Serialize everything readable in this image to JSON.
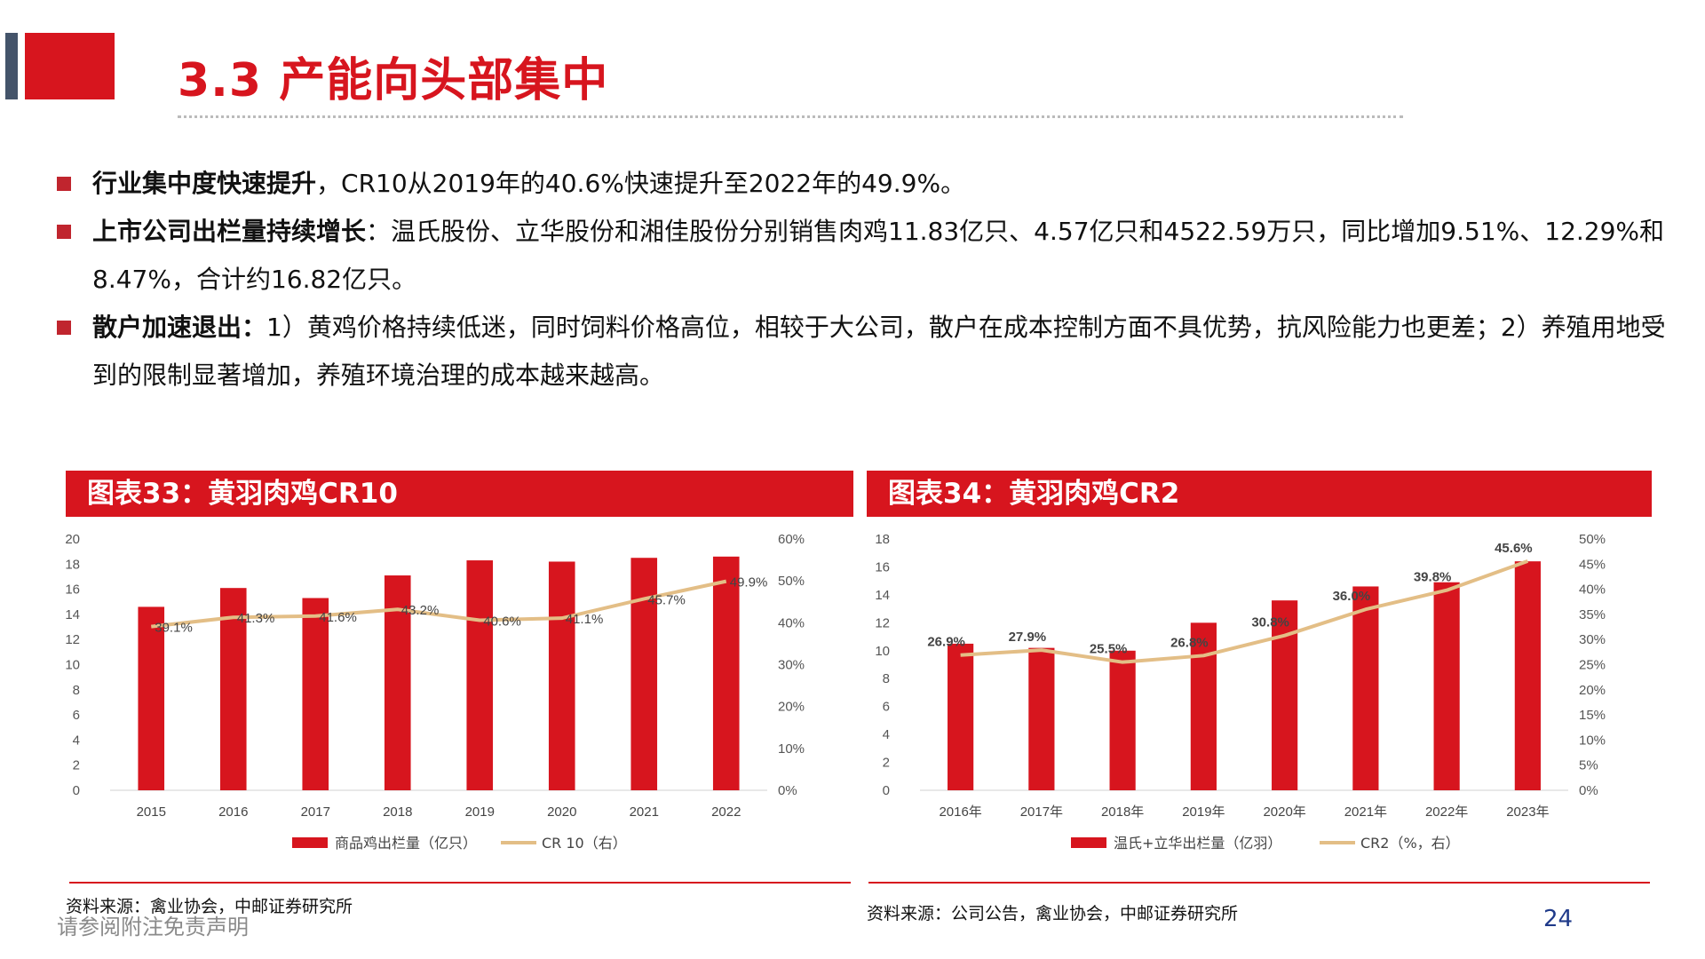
{
  "header": {
    "title": "3.3 产能向头部集中"
  },
  "bullets": [
    {
      "bold": "行业集中度快速提升",
      "text": "，CR10从2019年的40.6%快速提升至2022年的49.9%。"
    },
    {
      "bold": "上市公司出栏量持续增长",
      "text": "：温氏股份、立华股份和湘佳股份分别销售肉鸡11.83亿只、4.57亿只和4522.59万只，同比增加9.51%、12.29%和8.47%，合计约16.82亿只。"
    },
    {
      "bold": "散户加速退出：",
      "text": "1）黄鸡价格持续低迷，同时饲料价格高位，相较于大公司，散户在成本控制方面不具优势，抗风险能力也更差；2）养殖用地受到的限制显著增加，养殖环境治理的成本越来越高。"
    }
  ],
  "colors": {
    "accent": "#D7151E",
    "line": "#E3BE86",
    "slate": "#44546A"
  },
  "chart_data": [
    {
      "type": "bar",
      "title": "图表33：黄羽肉鸡CR10",
      "categories": [
        "2015",
        "2016",
        "2017",
        "2018",
        "2019",
        "2020",
        "2021",
        "2022"
      ],
      "series": [
        {
          "name": "商品鸡出栏量（亿只）",
          "type": "bar",
          "axis": "left",
          "values": [
            14.6,
            16.1,
            15.3,
            17.1,
            18.3,
            18.2,
            18.5,
            18.6
          ]
        },
        {
          "name": "CR 10（右）",
          "type": "line",
          "axis": "right",
          "values": [
            39.1,
            41.3,
            41.6,
            43.2,
            40.6,
            41.1,
            45.7,
            49.9
          ]
        }
      ],
      "data_labels": [
        "39.1%",
        "41.3%",
        "41.6%",
        "43.2%",
        "40.6%",
        "41.1%",
        "45.7%",
        "49.9%"
      ],
      "y_left": {
        "ylim": [
          0,
          20
        ],
        "ticks": [
          "0",
          "2",
          "4",
          "6",
          "8",
          "10",
          "12",
          "14",
          "16",
          "18",
          "20"
        ]
      },
      "y_right": {
        "ylim": [
          0,
          60
        ],
        "ticks": [
          "0%",
          "10%",
          "20%",
          "30%",
          "40%",
          "50%",
          "60%"
        ]
      },
      "legend": "bottom",
      "source": "资料来源：禽业协会，中邮证券研究所"
    },
    {
      "type": "bar",
      "title": "图表34：黄羽肉鸡CR2",
      "categories": [
        "2016年",
        "2017年",
        "2018年",
        "2019年",
        "2020年",
        "2021年",
        "2022年",
        "2023年"
      ],
      "series": [
        {
          "name": "温氏+立华出栏量（亿羽）",
          "type": "bar",
          "axis": "left",
          "values": [
            10.5,
            10.2,
            10.0,
            12.0,
            13.6,
            14.6,
            14.9,
            16.4
          ]
        },
        {
          "name": "CR2（%，右）",
          "type": "line",
          "axis": "right",
          "values": [
            26.9,
            27.9,
            25.5,
            26.8,
            30.8,
            36.0,
            39.8,
            45.6
          ]
        }
      ],
      "data_labels": [
        "26.9%",
        "27.9%",
        "25.5%",
        "26.8%",
        "30.8%",
        "36.0%",
        "39.8%",
        "45.6%"
      ],
      "y_left": {
        "ylim": [
          0,
          18
        ],
        "ticks": [
          "0",
          "2",
          "4",
          "6",
          "8",
          "10",
          "12",
          "14",
          "16",
          "18"
        ]
      },
      "y_right": {
        "ylim": [
          0,
          50
        ],
        "ticks": [
          "0%",
          "5%",
          "10%",
          "15%",
          "20%",
          "25%",
          "30%",
          "35%",
          "40%",
          "45%",
          "50%"
        ]
      },
      "legend": "bottom",
      "source": "资料来源：公司公告，禽业协会，中邮证券研究所"
    }
  ],
  "footer": {
    "disclaimer": "请参阅附注免责声明",
    "page_number": "24"
  }
}
